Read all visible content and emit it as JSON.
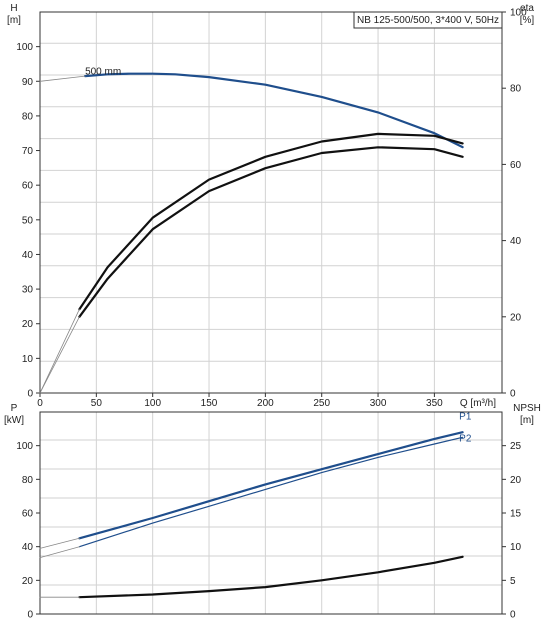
{
  "chart_data": [
    {
      "type": "line",
      "title": "NB 125-500/500, 3*400 V, 50Hz",
      "xlabel": "Q [m³/h]",
      "xlim": [
        0,
        410
      ],
      "x_ticks": [
        0,
        50,
        100,
        150,
        200,
        250,
        300,
        350
      ],
      "grid": true,
      "y_axes": {
        "left": {
          "label_line1": "H",
          "label_line2": "[m]",
          "range": [
            0,
            110
          ],
          "ticks": [
            0,
            10,
            20,
            30,
            40,
            50,
            60,
            70,
            80,
            90,
            100
          ]
        },
        "right": {
          "label_line1": "eta",
          "label_line2": "[%]",
          "range": [
            0,
            100
          ],
          "ticks": [
            0,
            20,
            40,
            60,
            80,
            100
          ]
        }
      },
      "annotations": [
        {
          "text": "500 mm",
          "x": 40,
          "y": 92
        }
      ],
      "series": [
        {
          "axis": "left",
          "color": "#1f4e8c",
          "width": 2.2,
          "x": [
            40,
            60,
            80,
            100,
            120,
            150,
            200,
            250,
            300,
            350,
            375
          ],
          "y": [
            91.5,
            92.0,
            92.2,
            92.2,
            92.0,
            91.2,
            89.0,
            85.5,
            81.0,
            75.0,
            71.0
          ]
        },
        {
          "axis": "left",
          "color": "#888888",
          "width": 0.8,
          "x": [
            0,
            40
          ],
          "y": [
            90,
            91.5
          ]
        },
        {
          "axis": "right",
          "color": "#111111",
          "width": 2.2,
          "x": [
            35,
            60,
            100,
            150,
            200,
            250,
            300,
            350,
            375
          ],
          "y": [
            20,
            30,
            43,
            53,
            59,
            63,
            64.5,
            64,
            62
          ]
        },
        {
          "axis": "right",
          "color": "#111111",
          "width": 2.2,
          "x": [
            35,
            60,
            100,
            150,
            200,
            250,
            300,
            350,
            375
          ],
          "y": [
            22,
            33,
            46,
            56,
            62,
            66,
            68,
            67.5,
            65.5
          ]
        },
        {
          "axis": "right",
          "color": "#888888",
          "width": 0.8,
          "x": [
            0,
            35
          ],
          "y": [
            0,
            20
          ]
        },
        {
          "axis": "right",
          "color": "#888888",
          "width": 0.8,
          "x": [
            0,
            35
          ],
          "y": [
            0,
            22
          ]
        }
      ]
    },
    {
      "type": "line",
      "xlim": [
        0,
        410
      ],
      "grid": true,
      "y_axes": {
        "left": {
          "label_line1": "P",
          "label_line2": "[kW]",
          "range": [
            0,
            120
          ],
          "ticks": [
            0,
            20,
            40,
            60,
            80,
            100
          ]
        },
        "right": {
          "label_line1": "NPSH",
          "label_line2": "[m]",
          "range": [
            0,
            30
          ],
          "ticks": [
            0,
            5,
            10,
            15,
            20,
            25
          ]
        }
      },
      "annotations": [
        {
          "text": "P1",
          "x": 372,
          "y": 115.5
        },
        {
          "text": "P2",
          "x": 372,
          "y": 102.5
        }
      ],
      "series": [
        {
          "name": "P1",
          "axis": "left",
          "color": "#1f4e8c",
          "width": 2.2,
          "x": [
            35,
            100,
            150,
            200,
            250,
            300,
            350,
            375
          ],
          "y": [
            45,
            57,
            67,
            77,
            86,
            95,
            104,
            108
          ]
        },
        {
          "name": "P2",
          "axis": "left",
          "color": "#1f4e8c",
          "width": 1.2,
          "x": [
            35,
            100,
            150,
            200,
            250,
            300,
            350,
            375
          ],
          "y": [
            40,
            54,
            64,
            74,
            84,
            93,
            101,
            105
          ]
        },
        {
          "axis": "left",
          "color": "#888888",
          "width": 0.8,
          "x": [
            0,
            35
          ],
          "y": [
            39,
            45
          ]
        },
        {
          "axis": "left",
          "color": "#888888",
          "width": 0.8,
          "x": [
            0,
            35
          ],
          "y": [
            33.5,
            40
          ]
        },
        {
          "axis": "right",
          "color": "#111111",
          "width": 2.2,
          "x": [
            35,
            100,
            150,
            200,
            250,
            300,
            350,
            375
          ],
          "y": [
            2.5,
            2.9,
            3.4,
            4.0,
            5.0,
            6.2,
            7.6,
            8.5
          ]
        },
        {
          "axis": "right",
          "color": "#888888",
          "width": 0.8,
          "x": [
            0,
            35
          ],
          "y": [
            2.5,
            2.5
          ]
        }
      ]
    }
  ]
}
